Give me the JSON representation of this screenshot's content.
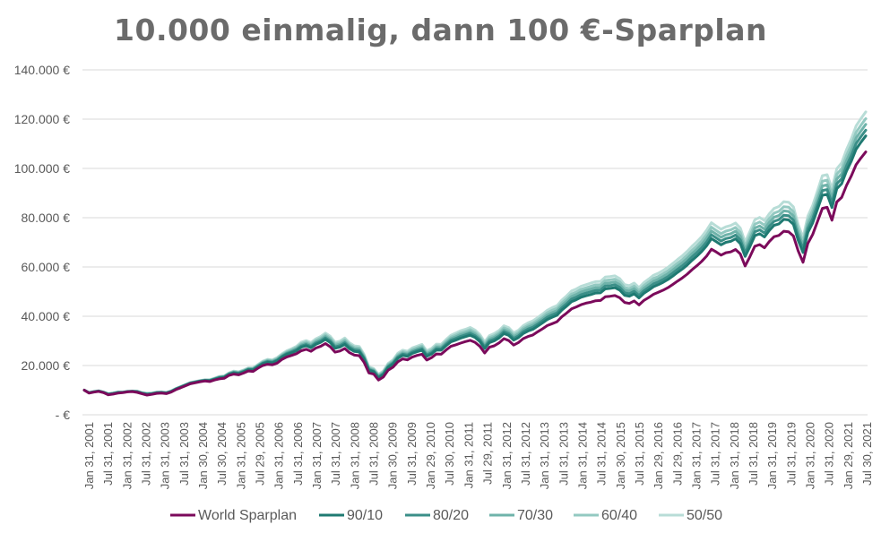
{
  "chart_data": {
    "type": "line",
    "title": "10.000 einmalig, dann 100 €-Sparplan",
    "xlabel": "",
    "ylabel": "",
    "ylim": [
      0,
      140000
    ],
    "yticks": [
      {
        "value": 0,
        "label": "-  €"
      },
      {
        "value": 20000,
        "label": "20.000 €"
      },
      {
        "value": 40000,
        "label": "40.000 €"
      },
      {
        "value": 60000,
        "label": "60.000 €"
      },
      {
        "value": 80000,
        "label": "80.000 €"
      },
      {
        "value": 100000,
        "label": "100.000 €"
      },
      {
        "value": 120000,
        "label": "120.000 €"
      },
      {
        "value": 140000,
        "label": "140.000 €"
      }
    ],
    "xticks": [
      "Jan 31, 2001",
      "Jul 31, 2001",
      "Jan 31, 2002",
      "Jul 31, 2002",
      "Jan 31, 2003",
      "Jul 31, 2003",
      "Jan 30, 2004",
      "Jul 30, 2004",
      "Jan 31, 2005",
      "Jul 29, 2005",
      "Jan 31, 2006",
      "Jul 31, 2006",
      "Jan 31, 2007",
      "Jul 31, 2007",
      "Jan 31, 2008",
      "Jul 31, 2008",
      "Jan 30, 2009",
      "Jul 31, 2009",
      "Jan 29, 2010",
      "Jul 30, 2010",
      "Jan 31, 2011",
      "Jul 29, 2011",
      "Jan 31, 2012",
      "Jul 31, 2012",
      "Jan 31, 2013",
      "Jul 31, 2013",
      "Jan 31, 2014",
      "Jul 31, 2014",
      "Jan 30, 2015",
      "Jul 31, 2015",
      "Jan 29, 2016",
      "Jul 29, 2016",
      "Jan 31, 2017",
      "Jul 31, 2017",
      "Jan 31, 2018",
      "Jul 31, 2018",
      "Jan 31, 2019",
      "Jul 31, 2019",
      "Jan 31, 2020",
      "Jul 31, 2020",
      "Jan 29, 2021",
      "Jul 30, 2021"
    ],
    "grid": true,
    "legend_position": "bottom",
    "series": [
      {
        "name": "World Sparplan",
        "color": "#7b0a5b",
        "values": [
          10000,
          8800,
          9200,
          9500,
          9000,
          8100,
          8400,
          8800,
          9000,
          9300,
          9400,
          9100,
          8500,
          8000,
          8300,
          8700,
          8800,
          8600,
          9200,
          10200,
          11000,
          11800,
          12600,
          13000,
          13400,
          13700,
          13500,
          14100,
          14600,
          14800,
          16000,
          16500,
          16200,
          16900,
          17800,
          17600,
          18900,
          20000,
          20500,
          20300,
          21000,
          22500,
          23500,
          24100,
          24800,
          26000,
          26600,
          25800,
          27100,
          27800,
          28900,
          27600,
          25400,
          25900,
          26900,
          25200,
          24200,
          24000,
          21300,
          17000,
          16500,
          14100,
          15300,
          18100,
          19300,
          21500,
          22700,
          22300,
          23400,
          24100,
          24600,
          22200,
          23200,
          24700,
          24600,
          26300,
          27800,
          28400,
          29100,
          29700,
          30200,
          29400,
          27800,
          25100,
          27400,
          28000,
          29200,
          30900,
          30100,
          28300,
          29300,
          30900,
          31800,
          32400,
          33700,
          34900,
          36200,
          37000,
          37800,
          39800,
          41300,
          43000,
          43800,
          44700,
          45300,
          45700,
          46300,
          46400,
          47900,
          48100,
          48400,
          47500,
          45600,
          45200,
          46200,
          44600,
          46400,
          47600,
          48900,
          49700,
          50600,
          51600,
          52900,
          54300,
          55600,
          57100,
          58900,
          60500,
          62300,
          64400,
          67200,
          66100,
          64800,
          65800,
          66100,
          67100,
          65300,
          60400,
          64200,
          68400,
          69100,
          67800,
          70300,
          72300,
          72800,
          74500,
          74300,
          72600,
          66500,
          61900,
          69600,
          73200,
          78500,
          83800,
          84200,
          79000,
          86400,
          88200,
          93100,
          97000,
          101500,
          104200,
          106700
        ]
      },
      {
        "name": "90/10",
        "color": "#1f7a72",
        "values": [
          10000,
          8900,
          9300,
          9600,
          9100,
          8300,
          8600,
          9000,
          9100,
          9400,
          9500,
          9300,
          8700,
          8300,
          8500,
          8900,
          9000,
          8800,
          9400,
          10400,
          11200,
          12000,
          12800,
          13200,
          13600,
          13900,
          13800,
          14400,
          15000,
          15200,
          16400,
          17000,
          16700,
          17400,
          18300,
          18200,
          19500,
          20700,
          21300,
          21100,
          21900,
          23400,
          24500,
          25200,
          26000,
          27400,
          28000,
          27200,
          28600,
          29400,
          30600,
          29300,
          27000,
          27500,
          28600,
          26800,
          25700,
          25500,
          22600,
          18000,
          17400,
          15000,
          16300,
          19200,
          20500,
          22900,
          24100,
          23700,
          24900,
          25600,
          26200,
          23700,
          24700,
          26300,
          26200,
          28000,
          29600,
          30300,
          31100,
          31700,
          32300,
          31400,
          29700,
          26900,
          29300,
          30000,
          31200,
          33000,
          32200,
          30300,
          31300,
          33000,
          34000,
          34700,
          36000,
          37300,
          38700,
          39600,
          40400,
          42500,
          44100,
          45900,
          46700,
          47700,
          48300,
          48800,
          49400,
          49500,
          51100,
          51300,
          51600,
          50600,
          48500,
          48100,
          49100,
          47400,
          49300,
          50600,
          52000,
          52800,
          53800,
          54900,
          56300,
          57800,
          59200,
          60800,
          62700,
          64400,
          66300,
          68600,
          71500,
          70300,
          69000,
          70000,
          70400,
          71400,
          69500,
          64300,
          68300,
          72700,
          73500,
          72200,
          74800,
          76900,
          77500,
          79300,
          79100,
          77300,
          70800,
          65900,
          74000,
          77900,
          83500,
          89100,
          89500,
          84100,
          91800,
          93800,
          98900,
          103000,
          107800,
          110600,
          113200
        ]
      }
    ]
  },
  "legend_labels": [
    "World Sparplan",
    "90/10",
    "80/20",
    "70/30",
    "60/40",
    "50/50"
  ],
  "extra_series": [
    {
      "name": "80/20",
      "color": "#3b8f88",
      "factor": 1.06
    },
    {
      "name": "70/30",
      "color": "#6fb3aa",
      "factor": 1.12
    },
    {
      "name": "60/40",
      "color": "#93c9c1",
      "factor": 1.18
    },
    {
      "name": "50/50",
      "color": "#b8ddd7",
      "factor": 1.25
    }
  ]
}
